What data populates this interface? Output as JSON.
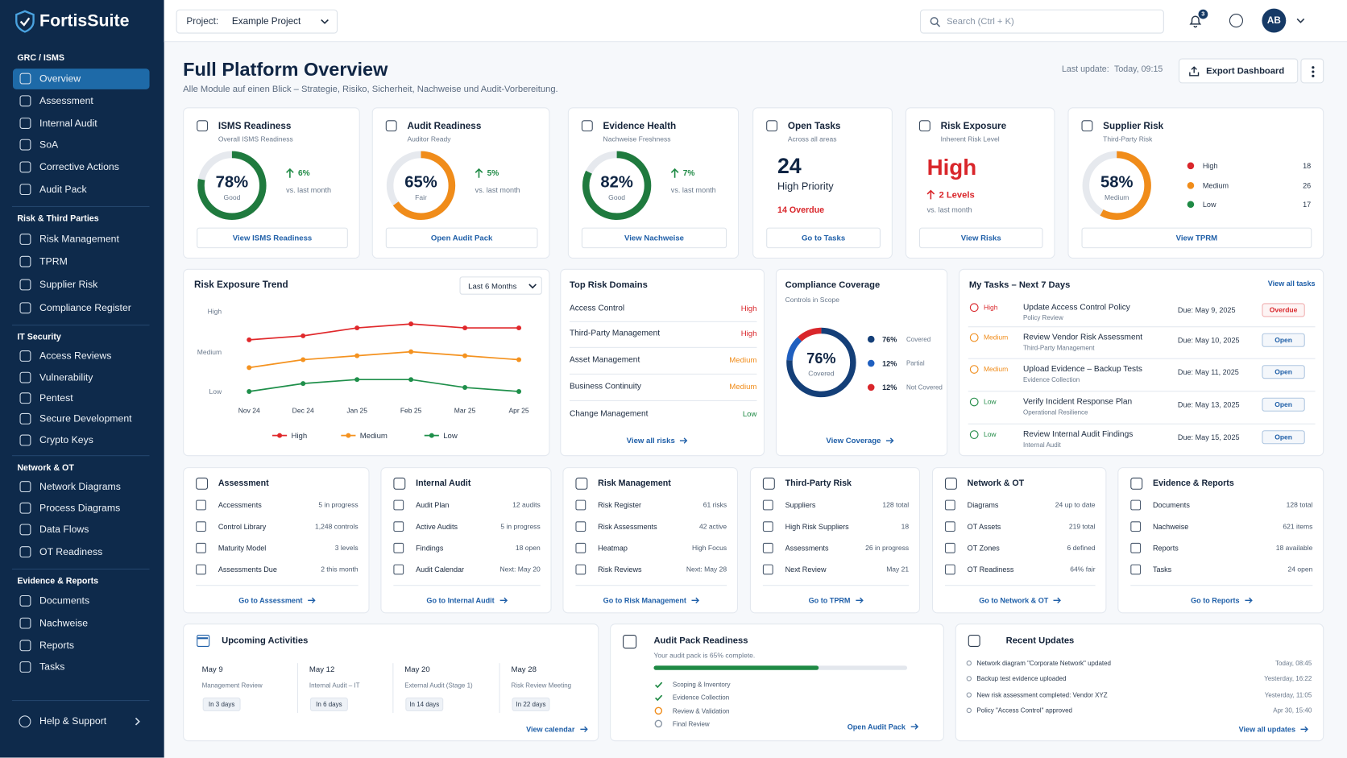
{
  "sidebar": {
    "brand": "FortisSuite",
    "sections": [
      {
        "title": "GRC / ISMS",
        "items": [
          "Overview",
          "Assessment",
          "Internal Audit",
          "SoA",
          "Corrective Actions",
          "Audit Pack"
        ]
      },
      {
        "title": "Risk & Third Parties",
        "items": [
          "Risk Management",
          "TPRM",
          "Supplier Risk",
          "Compliance Register"
        ]
      },
      {
        "title": "IT Security",
        "items": [
          "Access Reviews",
          "Vulnerability",
          "Pentest",
          "Secure Development",
          "Crypto Keys"
        ]
      },
      {
        "title": "Network & OT",
        "items": [
          "Network Diagrams",
          "Process Diagrams",
          "Data Flows",
          "OT Readiness"
        ]
      },
      {
        "title": "Evidence & Reports",
        "items": [
          "Documents",
          "Nachweise",
          "Reports",
          "Tasks"
        ]
      }
    ],
    "help": "Help & Support"
  },
  "topbar": {
    "project_label": "Project:",
    "project": "Example Project",
    "search": "Search (Ctrl + K)",
    "notifications": 3,
    "avatar": "AB"
  },
  "header": {
    "title": "Full Platform Overview",
    "subtitle": "Alle Module auf einen Blick – Strategie, Risiko, Sicherheit, Nachweise und Audit-Vorbereitung.",
    "last_update_label": "Last update:",
    "last_update": "Today, 09:15",
    "export": "Export Dashboard"
  },
  "levels": {
    "High": "#d9262b",
    "Medium": "#f08c1a",
    "Low": "#1f8a45"
  },
  "kpis": [
    {
      "title": "ISMS Readiness",
      "subtitle": "Overall ISMS Readiness",
      "value": 78,
      "value_label": "78%",
      "status": "Good",
      "color": "#1f7a3e",
      "change": "6%",
      "change_note": "vs. last month",
      "action": "View ISMS Readiness"
    },
    {
      "title": "Audit Readiness",
      "subtitle": "Auditor Ready",
      "value": 65,
      "value_label": "65%",
      "status": "Fair",
      "color": "#f08c1a",
      "change": "5%",
      "change_note": "vs. last month",
      "action": "Open Audit Pack"
    },
    {
      "title": "Evidence Health",
      "subtitle": "Nachweise Freshness",
      "value": 82,
      "value_label": "82%",
      "status": "Good",
      "color": "#1f7a3e",
      "change": "7%",
      "change_note": "vs. last month",
      "action": "View Nachweise"
    },
    {
      "title": "Open Tasks",
      "subtitle": "Across all areas",
      "count": 24,
      "count_note": "High Priority",
      "alert": "14 Overdue",
      "action": "Go to Tasks"
    },
    {
      "title": "Risk Exposure",
      "subtitle": "Inherent Risk Level",
      "level": "High",
      "change": "2 Levels",
      "change_note": "vs. last month",
      "action": "View Risks"
    },
    {
      "title": "Supplier Risk",
      "subtitle": "Third-Party Risk",
      "value": 58,
      "value_label": "58%",
      "status": "Medium",
      "color": "#f08c1a",
      "breakdown": [
        {
          "name": "High",
          "count": 18
        },
        {
          "name": "Medium",
          "count": 26
        },
        {
          "name": "Low",
          "count": 17
        }
      ],
      "action": "View TPRM"
    }
  ],
  "chart_data": {
    "type": "line",
    "title": "Risk Exposure Trend",
    "range": "Last 6 Months",
    "categories": [
      "Nov 24",
      "Dec 24",
      "Jan 25",
      "Feb 25",
      "Mar 25",
      "Apr 25"
    ],
    "series": [
      {
        "name": "High",
        "color": "#e0282b",
        "values": [
          2.3,
          2.4,
          2.6,
          2.7,
          2.6,
          2.6
        ]
      },
      {
        "name": "Medium",
        "color": "#f4921f",
        "values": [
          1.6,
          1.8,
          1.9,
          2.0,
          1.9,
          1.8
        ]
      },
      {
        "name": "Low",
        "color": "#1e8f4a",
        "values": [
          1.0,
          1.2,
          1.3,
          1.3,
          1.1,
          1.0
        ]
      }
    ],
    "ylim": [
      0.8,
      3.2
    ],
    "yticks": [
      {
        "value": 1,
        "label": "Low"
      },
      {
        "value": 2,
        "label": "Medium"
      },
      {
        "value": 3,
        "label": "High"
      }
    ]
  },
  "top_risks": {
    "title": "Top Risk Domains",
    "rows": [
      {
        "domain": "Access Control",
        "level": "High"
      },
      {
        "domain": "Third-Party Management",
        "level": "High"
      },
      {
        "domain": "Asset Management",
        "level": "Medium"
      },
      {
        "domain": "Business Continuity",
        "level": "Medium"
      },
      {
        "domain": "Change Management",
        "level": "Low"
      }
    ],
    "action": "View all risks"
  },
  "coverage": {
    "title": "Compliance Coverage",
    "subtitle": "Controls in Scope",
    "center": "76%",
    "center_note": "Covered",
    "segments": [
      {
        "name": "Covered",
        "value": 76,
        "label": "76%",
        "color": "#143f78"
      },
      {
        "name": "Partial",
        "value": 12,
        "label": "12%",
        "color": "#1f5fbf"
      },
      {
        "name": "Not Covered",
        "value": 12,
        "label": "12%",
        "color": "#d9262b"
      }
    ],
    "action": "View Coverage"
  },
  "tasks": {
    "title": "My Tasks – Next 7 Days",
    "action": "View all tasks",
    "rows": [
      {
        "priority": "High",
        "title": "Update Access Control Policy",
        "area": "Policy Review",
        "due": "Due: May 9, 2025",
        "status": "Overdue",
        "status_color": "#d9262b"
      },
      {
        "priority": "Medium",
        "title": "Review Vendor Risk Assessment",
        "area": "Third-Party Management",
        "due": "Due: May 10, 2025",
        "status": "Open",
        "status_color": "#1f5fa8"
      },
      {
        "priority": "Medium",
        "title": "Upload Evidence – Backup Tests",
        "area": "Evidence Collection",
        "due": "Due: May 11, 2025",
        "status": "Open",
        "status_color": "#1f5fa8"
      },
      {
        "priority": "Low",
        "title": "Verify Incident Response Plan",
        "area": "Operational Resilience",
        "due": "Due: May 13, 2025",
        "status": "Open",
        "status_color": "#1f5fa8"
      },
      {
        "priority": "Low",
        "title": "Review Internal Audit Findings",
        "area": "Internal Audit",
        "due": "Due: May 15, 2025",
        "status": "Open",
        "status_color": "#1f5fa8"
      }
    ]
  },
  "modules": [
    {
      "title": "Assessment",
      "rows": [
        [
          "Accessments",
          "5 in progress"
        ],
        [
          "Control Library",
          "1,248 controls"
        ],
        [
          "Maturity Model",
          "3 levels"
        ],
        [
          "Assessments Due",
          "2 this month"
        ]
      ],
      "action": "Go to Assessment"
    },
    {
      "title": "Internal Audit",
      "rows": [
        [
          "Audit Plan",
          "12 audits"
        ],
        [
          "Active Audits",
          "5 in progress"
        ],
        [
          "Findings",
          "18 open"
        ],
        [
          "Audit Calendar",
          "Next: May 20"
        ]
      ],
      "action": "Go to Internal Audit"
    },
    {
      "title": "Risk Management",
      "rows": [
        [
          "Risk Register",
          "61 risks"
        ],
        [
          "Risk Assessments",
          "42 active"
        ],
        [
          "Heatmap",
          "High Focus"
        ],
        [
          "Risk Reviews",
          "Next: May 28"
        ]
      ],
      "action": "Go to Risk Management"
    },
    {
      "title": "Third-Party Risk",
      "rows": [
        [
          "Suppliers",
          "128 total"
        ],
        [
          "High Risk Suppliers",
          "18"
        ],
        [
          "Assessments",
          "26 in progress"
        ],
        [
          "Next Review",
          "May 21"
        ]
      ],
      "action": "Go to TPRM"
    },
    {
      "title": "Network & OT",
      "rows": [
        [
          "Diagrams",
          "24 up to date"
        ],
        [
          "OT Assets",
          "219 total"
        ],
        [
          "OT Zones",
          "6 defined"
        ],
        [
          "OT Readiness",
          "64% fair"
        ]
      ],
      "action": "Go to Network & OT"
    },
    {
      "title": "Evidence & Reports",
      "rows": [
        [
          "Documents",
          "128 total"
        ],
        [
          "Nachweise",
          "621 items"
        ],
        [
          "Reports",
          "18 available"
        ],
        [
          "Tasks",
          "24 open"
        ]
      ],
      "action": "Go to Reports"
    }
  ],
  "activities": {
    "title": "Upcoming Activities",
    "items": [
      {
        "date": "May 9",
        "name": "Management Review",
        "due": "In 3 days"
      },
      {
        "date": "May 12",
        "name": "Internal Audit – IT",
        "due": "In 6 days"
      },
      {
        "date": "May 20",
        "name": "External Audit (Stage 1)",
        "due": "In 14 days"
      },
      {
        "date": "May 28",
        "name": "Risk Review Meeting",
        "due": "In 22 days"
      }
    ],
    "action": "View calendar"
  },
  "audit_pack": {
    "title": "Audit Pack Readiness",
    "subtitle": "Your audit pack is 65% complete.",
    "progress": 65,
    "steps": [
      "Scoping & Inventory",
      "Evidence Collection",
      "Review & Validation",
      "Final Review"
    ],
    "action": "Open Audit Pack"
  },
  "updates": {
    "title": "Recent Updates",
    "items": [
      {
        "text": "Network diagram \"Corporate Network\" updated",
        "time": "Today, 08:45"
      },
      {
        "text": "Backup test evidence uploaded",
        "time": "Yesterday, 16:22"
      },
      {
        "text": "New risk assessment completed: Vendor XYZ",
        "time": "Yesterday, 11:05"
      },
      {
        "text": "Policy \"Access Control\" approved",
        "time": "Apr 30, 15:40"
      }
    ],
    "action": "View all updates"
  }
}
